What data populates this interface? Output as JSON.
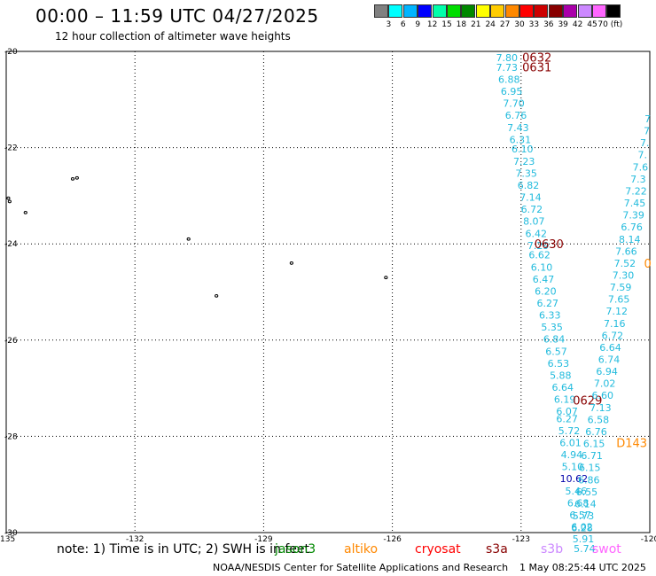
{
  "header": {
    "title": "00:00 – 11:59 UTC 04/27/2025",
    "subtitle": "12 hour collection of altimeter wave heights"
  },
  "color_scale": {
    "colors": [
      "#808080",
      "#00ffff",
      "#00b4ff",
      "#0000ff",
      "#00ffaa",
      "#00dd00",
      "#008800",
      "#ffff00",
      "#ffcc00",
      "#ff8800",
      "#ff0000",
      "#cc0000",
      "#880000",
      "#aa00aa",
      "#cc88ff",
      "#ff66ff",
      "#000000"
    ],
    "labels": [
      "3",
      "6",
      "9",
      "12",
      "15",
      "18",
      "21",
      "24",
      "27",
      "30",
      "33",
      "36",
      "39",
      "42",
      "45",
      "70 (ft)"
    ]
  },
  "axes": {
    "lon_labels": [
      "-135",
      "-132",
      "-129",
      "-126",
      "-123",
      "-120"
    ],
    "lat_labels": [
      "-20",
      "-22",
      "-24",
      "-26",
      "-28",
      "-30"
    ]
  },
  "tracks": [
    {
      "name": "track-a",
      "timestamps": [
        {
          "text": "0632",
          "lat": -20.12,
          "lon": -122.63,
          "color": "#880000"
        },
        {
          "text": "0631",
          "lat": -20.32,
          "lon": -122.63,
          "color": "#880000"
        },
        {
          "text": "0630",
          "lat": -24.0,
          "lon": -122.35,
          "color": "#880000"
        },
        {
          "text": "0629",
          "lat": -27.25,
          "lon": -121.45,
          "color": "#880000"
        }
      ],
      "points": [
        {
          "lat": -20.13,
          "lon": -123.33,
          "v": "7.80"
        },
        {
          "lat": -20.33,
          "lon": -123.33,
          "v": "7.73"
        },
        {
          "lat": -20.58,
          "lon": -123.28,
          "v": "6.88"
        },
        {
          "lat": -20.83,
          "lon": -123.22,
          "v": "6.95"
        },
        {
          "lat": -21.08,
          "lon": -123.17,
          "v": "7.70"
        },
        {
          "lat": -21.33,
          "lon": -123.12,
          "v": "6.76"
        },
        {
          "lat": -21.58,
          "lon": -123.07,
          "v": "7.43"
        },
        {
          "lat": -21.83,
          "lon": -123.02,
          "v": "6.31"
        },
        {
          "lat": -22.03,
          "lon": -122.97,
          "v": "6.10"
        },
        {
          "lat": -22.28,
          "lon": -122.93,
          "v": "7.23"
        },
        {
          "lat": -22.53,
          "lon": -122.88,
          "v": "7.35"
        },
        {
          "lat": -22.78,
          "lon": -122.83,
          "v": "6.82"
        },
        {
          "lat": -23.03,
          "lon": -122.78,
          "v": "7.14"
        },
        {
          "lat": -23.28,
          "lon": -122.75,
          "v": "6.72"
        },
        {
          "lat": -23.53,
          "lon": -122.7,
          "v": "8.07"
        },
        {
          "lat": -23.78,
          "lon": -122.65,
          "v": "6.42"
        },
        {
          "lat": -24.03,
          "lon": -122.6,
          "v": "7.29"
        },
        {
          "lat": -24.23,
          "lon": -122.57,
          "v": "6.62"
        },
        {
          "lat": -24.48,
          "lon": -122.52,
          "v": "6.10"
        },
        {
          "lat": -24.73,
          "lon": -122.48,
          "v": "6.47"
        },
        {
          "lat": -24.98,
          "lon": -122.43,
          "v": "6.20"
        },
        {
          "lat": -25.23,
          "lon": -122.38,
          "v": "6.27"
        },
        {
          "lat": -25.48,
          "lon": -122.33,
          "v": "6.33"
        },
        {
          "lat": -25.73,
          "lon": -122.28,
          "v": "5.35"
        },
        {
          "lat": -25.98,
          "lon": -122.23,
          "v": "6.84"
        },
        {
          "lat": -26.23,
          "lon": -122.18,
          "v": "6.57"
        },
        {
          "lat": -26.48,
          "lon": -122.13,
          "v": "6.53"
        },
        {
          "lat": -26.73,
          "lon": -122.08,
          "v": "5.88"
        },
        {
          "lat": -26.98,
          "lon": -122.03,
          "v": "6.64"
        },
        {
          "lat": -27.23,
          "lon": -121.98,
          "v": "6.19"
        },
        {
          "lat": -27.48,
          "lon": -121.93,
          "v": "6.07"
        },
        {
          "lat": -27.63,
          "lon": -121.93,
          "v": "6.27"
        },
        {
          "lat": -27.88,
          "lon": -121.88,
          "v": "5.72"
        },
        {
          "lat": -28.13,
          "lon": -121.85,
          "v": "6.01"
        },
        {
          "lat": -28.38,
          "lon": -121.82,
          "v": "4.94"
        },
        {
          "lat": -28.63,
          "lon": -121.8,
          "v": "5.10"
        },
        {
          "lat": -28.88,
          "lon": -121.77,
          "v": "10.62",
          "color": "#0000aa"
        },
        {
          "lat": -29.13,
          "lon": -121.72,
          "v": "5.46"
        },
        {
          "lat": -29.38,
          "lon": -121.67,
          "v": "6.68"
        },
        {
          "lat": -29.63,
          "lon": -121.62,
          "v": "6.57"
        },
        {
          "lat": -29.88,
          "lon": -121.58,
          "v": "6.02"
        },
        {
          "lat": -30.13,
          "lon": -121.55,
          "v": "5.91"
        },
        {
          "lat": -30.33,
          "lon": -121.52,
          "v": "5.74"
        }
      ]
    },
    {
      "name": "track-b",
      "timestamps": [
        {
          "text": "D143",
          "lat": -28.13,
          "lon": -120.42,
          "color": "#ff8800"
        }
      ],
      "points": [
        {
          "lat": -21.4,
          "lon": -120.05,
          "v": "7"
        },
        {
          "lat": -21.65,
          "lon": -120.07,
          "v": "7"
        },
        {
          "lat": -21.9,
          "lon": -120.12,
          "v": "7."
        },
        {
          "lat": -22.15,
          "lon": -120.17,
          "v": "7."
        },
        {
          "lat": -22.4,
          "lon": -120.22,
          "v": "7.6"
        },
        {
          "lat": -22.65,
          "lon": -120.27,
          "v": "7.3"
        },
        {
          "lat": -22.9,
          "lon": -120.32,
          "v": "7.22"
        },
        {
          "lat": -23.15,
          "lon": -120.35,
          "v": "7.45"
        },
        {
          "lat": -23.4,
          "lon": -120.38,
          "v": "7.39"
        },
        {
          "lat": -23.65,
          "lon": -120.42,
          "v": "6.76"
        },
        {
          "lat": -23.9,
          "lon": -120.47,
          "v": "8.14"
        },
        {
          "lat": -24.15,
          "lon": -120.55,
          "v": "7.66"
        },
        {
          "lat": -24.4,
          "lon": -120.58,
          "v": "7.52"
        },
        {
          "lat": -24.65,
          "lon": -120.62,
          "v": "7.30"
        },
        {
          "lat": -24.9,
          "lon": -120.68,
          "v": "7.59"
        },
        {
          "lat": -25.15,
          "lon": -120.72,
          "v": "7.65"
        },
        {
          "lat": -25.4,
          "lon": -120.77,
          "v": "7.12"
        },
        {
          "lat": -25.65,
          "lon": -120.82,
          "v": "7.16"
        },
        {
          "lat": -25.9,
          "lon": -120.87,
          "v": "6.72"
        },
        {
          "lat": -26.15,
          "lon": -120.92,
          "v": "6.64"
        },
        {
          "lat": -26.4,
          "lon": -120.95,
          "v": "6.74"
        },
        {
          "lat": -26.65,
          "lon": -121.0,
          "v": "6.94"
        },
        {
          "lat": -26.9,
          "lon": -121.05,
          "v": "7.02"
        },
        {
          "lat": -27.15,
          "lon": -121.1,
          "v": "6.60"
        },
        {
          "lat": -27.4,
          "lon": -121.15,
          "v": "7.13"
        },
        {
          "lat": -27.65,
          "lon": -121.2,
          "v": "6.58"
        },
        {
          "lat": -27.9,
          "lon": -121.25,
          "v": "6.76"
        },
        {
          "lat": -28.15,
          "lon": -121.3,
          "v": "6.15"
        },
        {
          "lat": -28.4,
          "lon": -121.35,
          "v": "6.71"
        },
        {
          "lat": -28.65,
          "lon": -121.4,
          "v": "6.15"
        },
        {
          "lat": -28.9,
          "lon": -121.42,
          "v": "6.86"
        },
        {
          "lat": -29.15,
          "lon": -121.47,
          "v": "6.55"
        },
        {
          "lat": -29.4,
          "lon": -121.5,
          "v": "6.14"
        },
        {
          "lat": -29.65,
          "lon": -121.55,
          "v": "5.73"
        },
        {
          "lat": -29.9,
          "lon": -121.58,
          "v": "6.28"
        }
      ]
    },
    {
      "name": "track-c",
      "timestamps": [
        {
          "text": "0",
          "lat": -24.4,
          "lon": -120.05,
          "color": "#ff8800"
        }
      ],
      "points": []
    }
  ],
  "islands": [
    {
      "lat": -22.65,
      "lon": -133.45
    },
    {
      "lat": -22.63,
      "lon": -133.35
    },
    {
      "lat": -23.05,
      "lon": -134.95
    },
    {
      "lat": -23.12,
      "lon": -134.92
    },
    {
      "lat": -23.35,
      "lon": -134.55
    },
    {
      "lat": -23.9,
      "lon": -130.75
    },
    {
      "lat": -24.4,
      "lon": -128.35
    },
    {
      "lat": -24.7,
      "lon": -126.15
    },
    {
      "lat": -25.08,
      "lon": -130.1
    }
  ],
  "footer": {
    "note": "note: 1) Time is in UTC; 2) SWH is in feet",
    "satellites": [
      {
        "name": "jason3",
        "color": "#008800"
      },
      {
        "name": "altiko",
        "color": "#ff8800"
      },
      {
        "name": "cryosat",
        "color": "#ff0000"
      },
      {
        "name": "s3a",
        "color": "#880000"
      },
      {
        "name": "s3b",
        "color": "#cc88ff"
      },
      {
        "name": "swot",
        "color": "#ff66ff"
      }
    ],
    "credit": "NOAA/NESDIS Center for Satellite Applications and Research",
    "timestamp": "1 May 08:25:44 UTC 2025"
  }
}
